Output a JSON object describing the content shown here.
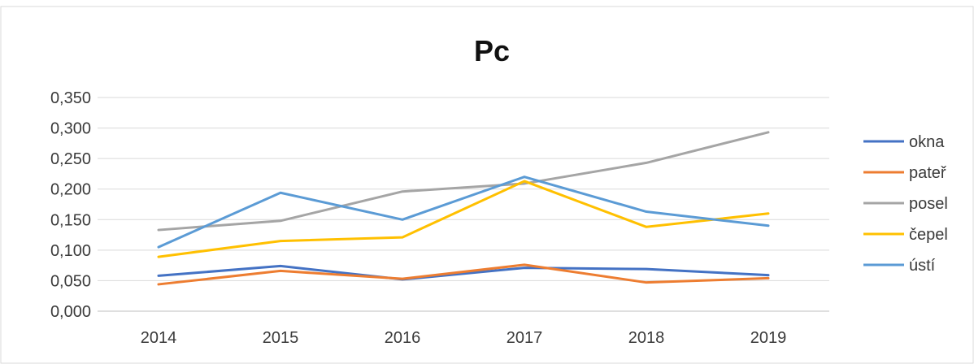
{
  "chart_data": {
    "type": "line",
    "title": "Pc",
    "xlabel": "",
    "ylabel": "",
    "categories": [
      "2014",
      "2015",
      "2016",
      "2017",
      "2018",
      "2019"
    ],
    "y_ticks": [
      "0,000",
      "0,050",
      "0,100",
      "0,150",
      "0,200",
      "0,250",
      "0,300",
      "0,350"
    ],
    "ylim": [
      0,
      0.35
    ],
    "grid": true,
    "legend_position": "right",
    "series": [
      {
        "name": "okna",
        "color": "#4472C4",
        "values": [
          0.058,
          0.074,
          0.052,
          0.071,
          0.069,
          0.059
        ]
      },
      {
        "name": "pateř",
        "color": "#ED7D31",
        "values": [
          0.044,
          0.066,
          0.053,
          0.076,
          0.047,
          0.054
        ]
      },
      {
        "name": "posel",
        "color": "#A5A5A5",
        "values": [
          0.133,
          0.148,
          0.196,
          0.209,
          0.243,
          0.293
        ]
      },
      {
        "name": "čepel",
        "color": "#FFC000",
        "values": [
          0.089,
          0.115,
          0.121,
          0.213,
          0.138,
          0.16
        ]
      },
      {
        "name": "ústí",
        "color": "#5B9BD5",
        "values": [
          0.105,
          0.194,
          0.15,
          0.22,
          0.163,
          0.14
        ]
      }
    ]
  }
}
